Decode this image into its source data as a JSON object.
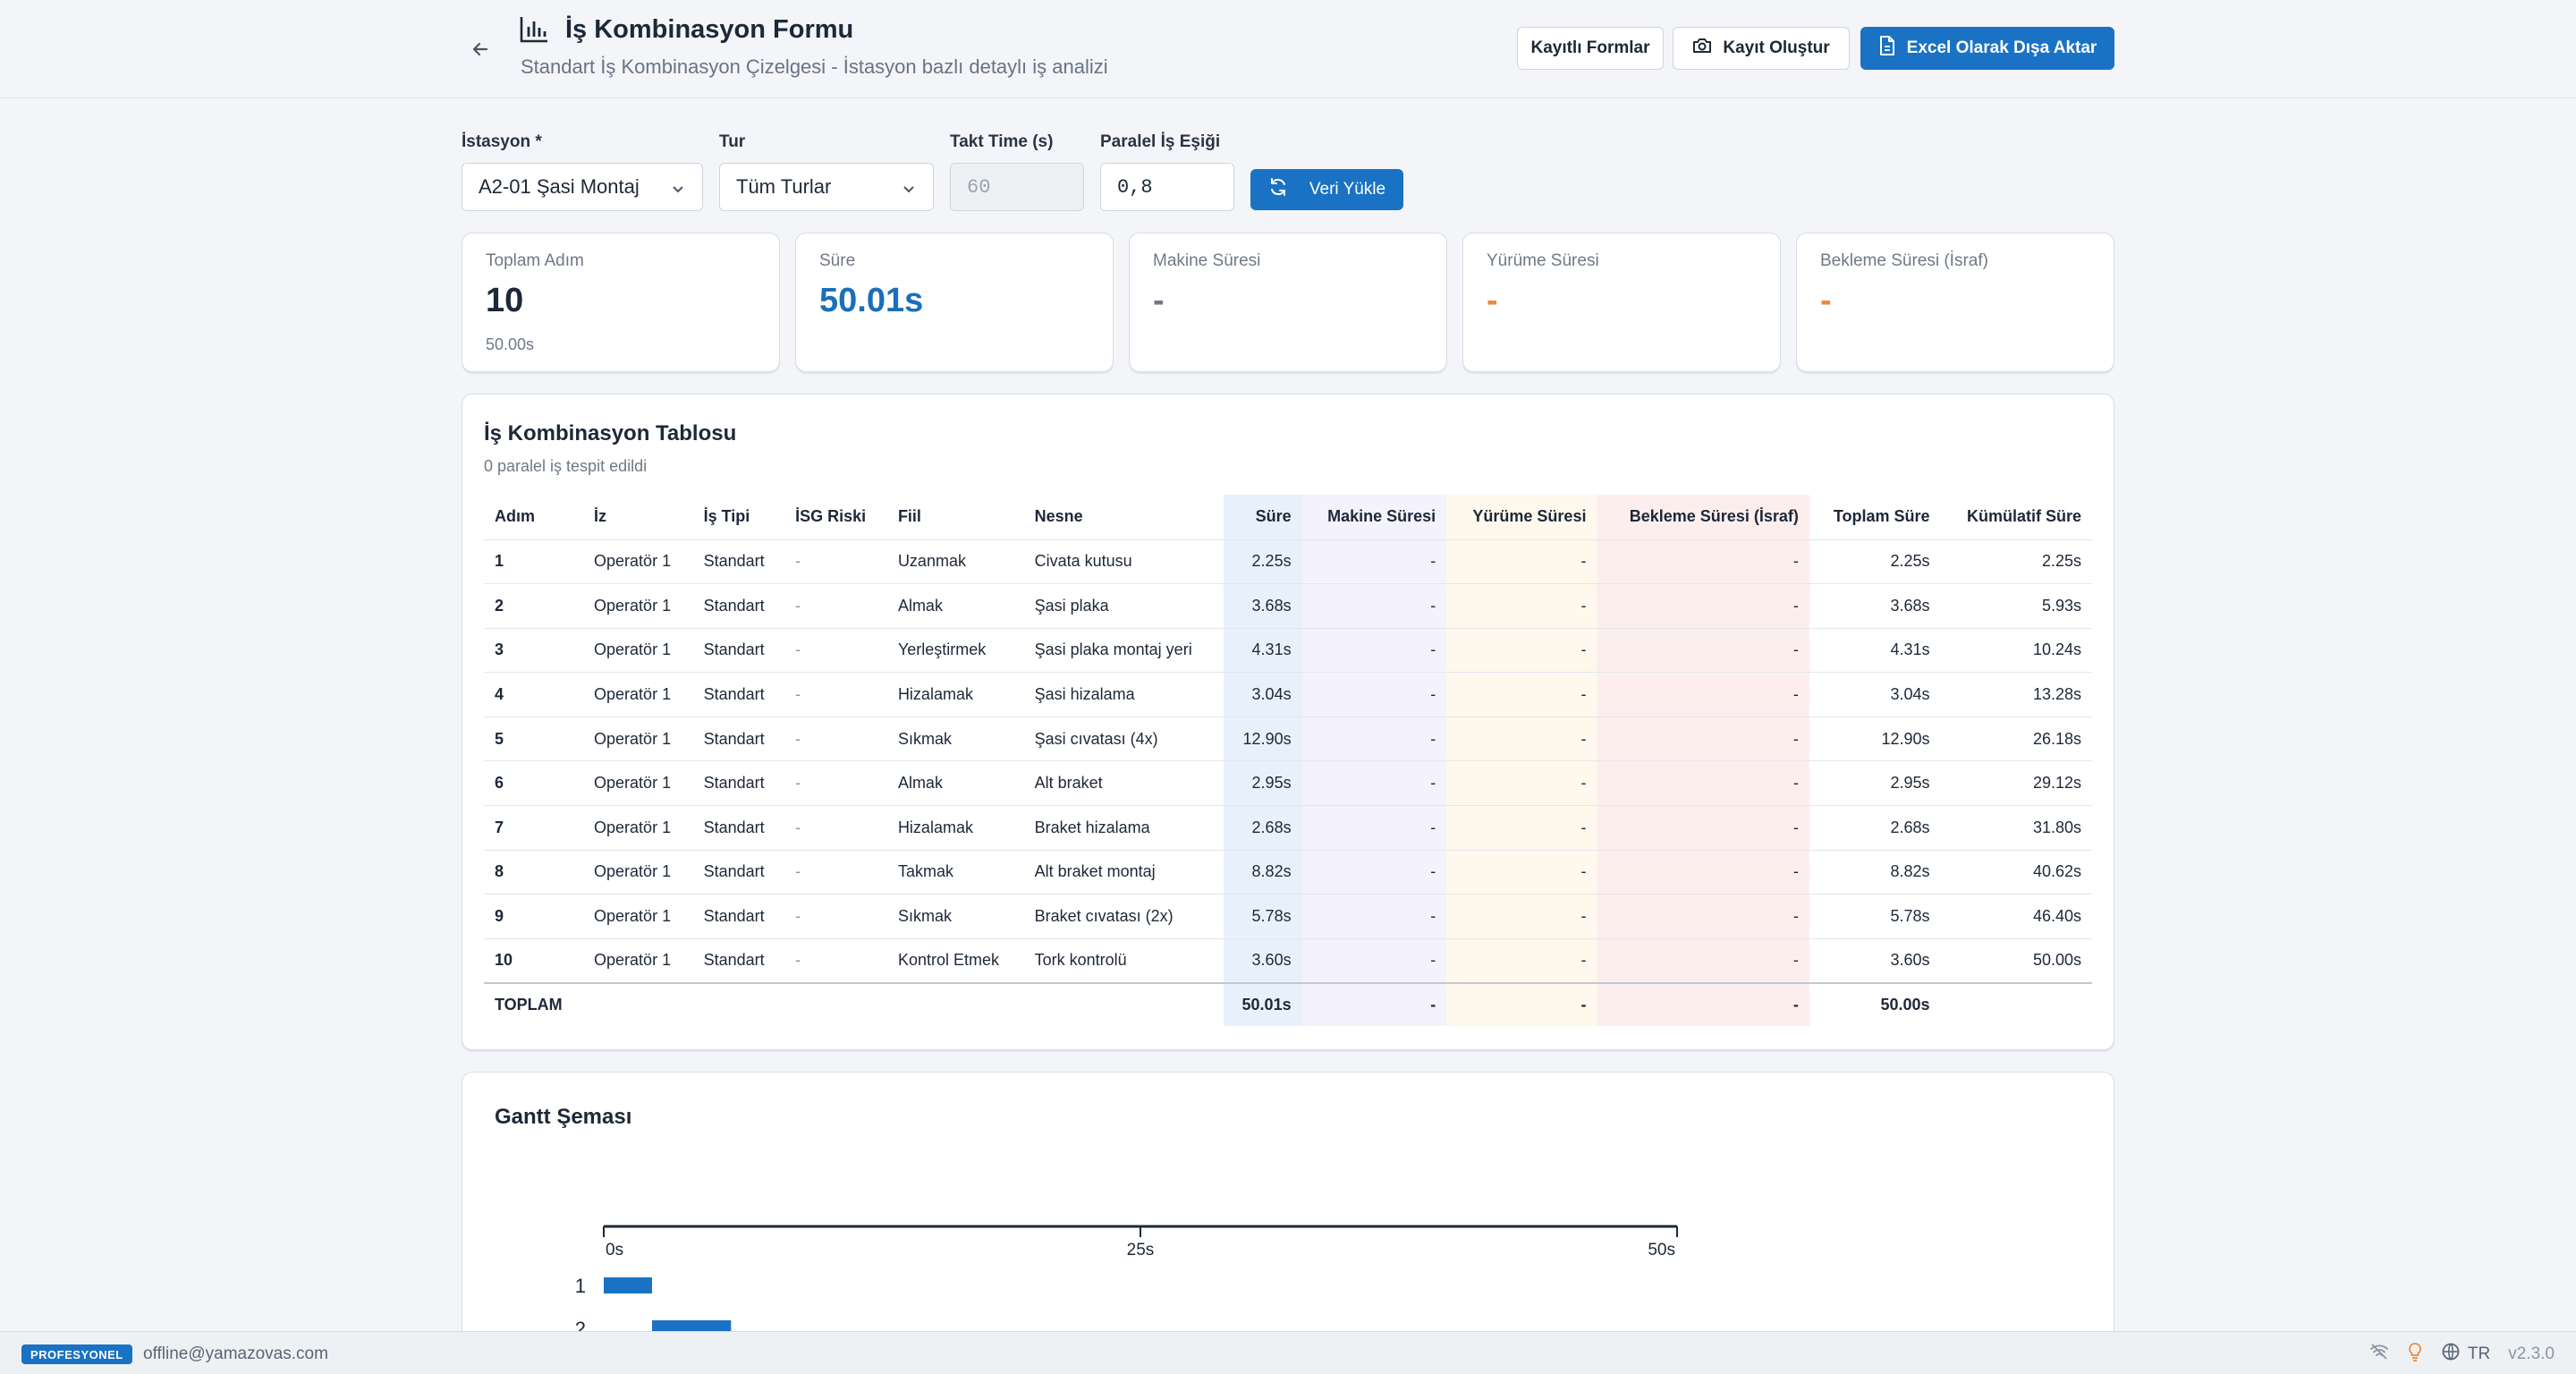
{
  "header": {
    "title": "İş Kombinasyon Formu",
    "subtitle": "Standart İş Kombinasyon Çizelgesi - İstasyon bazlı detaylı iş analizi",
    "btn_saved": "Kayıtlı Formlar",
    "btn_snapshot": "Kayıt Oluştur",
    "btn_export": "Excel Olarak Dışa Aktar"
  },
  "filters": {
    "station_label": "İstasyon *",
    "station_value": "A2-01 Şasi Montaj",
    "type_label": "Tur",
    "type_value": "Tüm Turlar",
    "takt_label": "Takt Time (s)",
    "takt_placeholder": "60",
    "threshold_label": "Paralel İş Eşiği",
    "threshold_value": "0,8",
    "load_button": "Veri Yükle"
  },
  "stats": [
    {
      "label": "Toplam Adım",
      "value": "10",
      "sub": "50.00s"
    },
    {
      "label": "Süre",
      "value": "50.01s",
      "sub": ""
    },
    {
      "label": "Makine Süresi",
      "value": "-",
      "sub": ""
    },
    {
      "label": "Yürüme Süresi",
      "value": "-",
      "sub": ""
    },
    {
      "label": "Bekleme Süresi (İsraf)",
      "value": "-",
      "sub": ""
    }
  ],
  "table": {
    "title": "İş Kombinasyon Tablosu",
    "description": "0 paralel iş tespit edildi",
    "columns": [
      "Adım",
      "İz",
      "İş Tipi",
      "İSG Riski",
      "Fiil",
      "Nesne",
      "Süre",
      "Makine Süresi",
      "Yürüme Süresi",
      "Bekleme Süresi (İsraf)",
      "Toplam Süre",
      "Kümülatif Süre"
    ],
    "rows": [
      [
        "1",
        "Operatör 1",
        "Standart",
        "-",
        "Uzanmak",
        "Civata kutusu",
        "2.25s",
        "-",
        "-",
        "-",
        "2.25s",
        "2.25s"
      ],
      [
        "2",
        "Operatör 1",
        "Standart",
        "-",
        "Almak",
        "Şasi plaka",
        "3.68s",
        "-",
        "-",
        "-",
        "3.68s",
        "5.93s"
      ],
      [
        "3",
        "Operatör 1",
        "Standart",
        "-",
        "Yerleştirmek",
        "Şasi plaka montaj yeri",
        "4.31s",
        "-",
        "-",
        "-",
        "4.31s",
        "10.24s"
      ],
      [
        "4",
        "Operatör 1",
        "Standart",
        "-",
        "Hizalamak",
        "Şasi hizalama",
        "3.04s",
        "-",
        "-",
        "-",
        "3.04s",
        "13.28s"
      ],
      [
        "5",
        "Operatör 1",
        "Standart",
        "-",
        "Sıkmak",
        "Şasi cıvatası (4x)",
        "12.90s",
        "-",
        "-",
        "-",
        "12.90s",
        "26.18s"
      ],
      [
        "6",
        "Operatör 1",
        "Standart",
        "-",
        "Almak",
        "Alt braket",
        "2.95s",
        "-",
        "-",
        "-",
        "2.95s",
        "29.12s"
      ],
      [
        "7",
        "Operatör 1",
        "Standart",
        "-",
        "Hizalamak",
        "Braket hizalama",
        "2.68s",
        "-",
        "-",
        "-",
        "2.68s",
        "31.80s"
      ],
      [
        "8",
        "Operatör 1",
        "Standart",
        "-",
        "Takmak",
        "Alt braket montaj",
        "8.82s",
        "-",
        "-",
        "-",
        "8.82s",
        "40.62s"
      ],
      [
        "9",
        "Operatör 1",
        "Standart",
        "-",
        "Sıkmak",
        "Braket cıvatası (2x)",
        "5.78s",
        "-",
        "-",
        "-",
        "5.78s",
        "46.40s"
      ],
      [
        "10",
        "Operatör 1",
        "Standart",
        "-",
        "Kontrol Etmek",
        "Tork kontrolü",
        "3.60s",
        "-",
        "-",
        "-",
        "3.60s",
        "50.00s"
      ]
    ],
    "total": {
      "label": "TOPLAM",
      "sure": "50.01s",
      "makine": "-",
      "yurume": "-",
      "bekleme": "-",
      "toplam": "50.00s"
    }
  },
  "gantt": {
    "title": "Gantt Şeması",
    "chart_data": {
      "type": "bar",
      "orientation": "horizontal-gantt",
      "x_ticks": [
        "0s",
        "25s",
        "50s"
      ],
      "xlim": [
        0,
        50
      ],
      "bar_color": "#1a72c4",
      "visible_rows": [
        {
          "label": "1",
          "start": 0,
          "end": 2.25
        },
        {
          "label": "2",
          "start": 2.25,
          "end": 5.93
        }
      ]
    }
  },
  "footer": {
    "badge": "PROFESYONEL",
    "email": "offline@yamazovas.com",
    "lang": "TR",
    "version": "v2.3.0"
  },
  "colors": {
    "primary": "#1a72c4",
    "accent_blue": "#1b6fb8",
    "accent_orange": "#e98a3c"
  }
}
